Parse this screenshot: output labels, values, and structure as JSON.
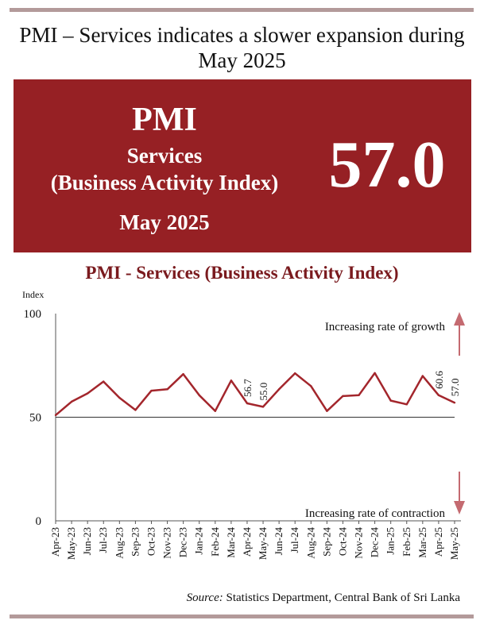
{
  "headline": "PMI – Services indicates a slower expansion during May 2025",
  "banner": {
    "title": "PMI",
    "line1": "Services",
    "line2": "(Business Activity Index)",
    "month": "May 2025",
    "value": "57.0",
    "background": "#962024"
  },
  "chart_title": "PMI - Services (Business Activity Index)",
  "chart_data": {
    "type": "line",
    "title": "PMI - Services (Business Activity Index)",
    "ylabel": "Index",
    "xlabel": "",
    "ylim": [
      0,
      100
    ],
    "yticks": [
      0,
      50,
      100
    ],
    "grid": "horizontal line at 50",
    "categories": [
      "Apr-23",
      "May-23",
      "Jun-23",
      "Jul-23",
      "Aug-23",
      "Sep-23",
      "Oct-23",
      "Nov-23",
      "Dec-23",
      "Jan-24",
      "Feb-24",
      "Mar-24",
      "Apr-24",
      "May-24",
      "Jun-24",
      "Jul-24",
      "Aug-24",
      "Sep-24",
      "Oct-24",
      "Nov-24",
      "Dec-24",
      "Jan-25",
      "Feb-25",
      "Mar-25",
      "Apr-25",
      "May-25"
    ],
    "series": [
      {
        "color": "#a3262c",
        "values": [
          51.0,
          57.5,
          61.5,
          67.2,
          59.4,
          53.5,
          62.8,
          63.5,
          70.8,
          60.6,
          53.0,
          67.7,
          56.7,
          55.0,
          63.5,
          71.2,
          65.0,
          53.0,
          60.2,
          60.6,
          71.3,
          58.0,
          56.2,
          69.9,
          60.6,
          57.0
        ]
      }
    ],
    "data_labels": [
      {
        "category": "Apr-24",
        "text": "56.7"
      },
      {
        "category": "May-24",
        "text": "55.0"
      },
      {
        "category": "Apr-25",
        "text": "60.6"
      },
      {
        "category": "May-25",
        "text": "57.0"
      }
    ],
    "annotations": [
      {
        "text": "Increasing rate of growth",
        "arrow": "up"
      },
      {
        "text": "Increasing rate of contraction",
        "arrow": "down"
      }
    ]
  },
  "source": {
    "prefix": "Source:",
    "text": " Statistics Department, Central Bank of Sri Lanka"
  }
}
